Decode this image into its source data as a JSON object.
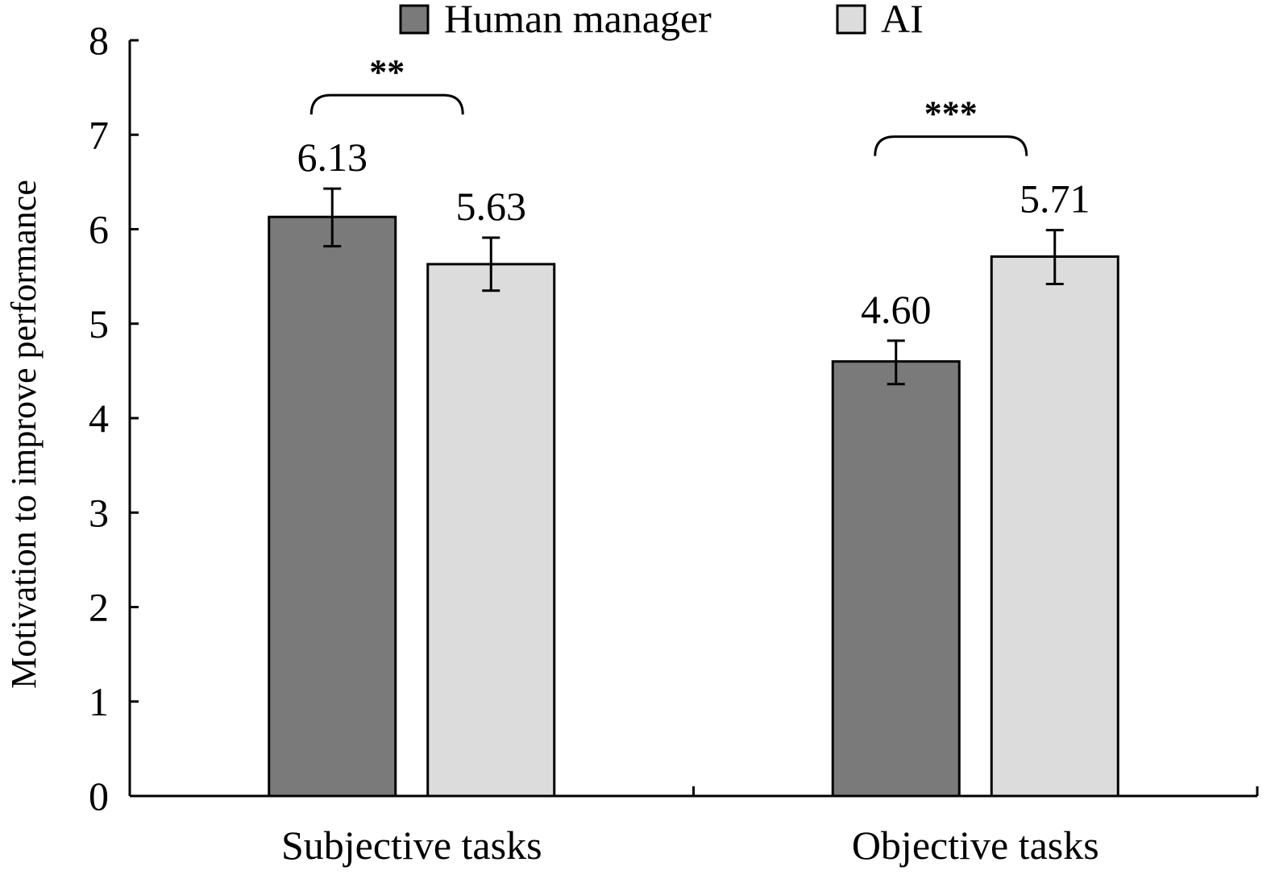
{
  "chart_data": {
    "type": "bar",
    "title": "",
    "xlabel": "",
    "ylabel": "Motivation to improve performance",
    "ylim": [
      0,
      8
    ],
    "yticks": [
      0,
      1,
      2,
      3,
      4,
      5,
      6,
      7,
      8
    ],
    "grid": false,
    "legend_position": "top",
    "categories": [
      "Subjective tasks",
      "Objective tasks"
    ],
    "series": [
      {
        "name": "Human manager",
        "color": "#7a7a7a",
        "values": [
          6.13,
          4.6
        ],
        "value_labels": [
          "6.13",
          "4.60"
        ],
        "error_low": [
          5.82,
          4.36
        ],
        "error_high": [
          6.43,
          4.82
        ]
      },
      {
        "name": "AI",
        "color": "#dcdcdc",
        "values": [
          5.63,
          5.71
        ],
        "value_labels": [
          "5.63",
          "5.71"
        ],
        "error_low": [
          5.35,
          5.42
        ],
        "error_high": [
          5.91,
          5.99
        ]
      }
    ],
    "significance": [
      {
        "category_index": 0,
        "label": "**"
      },
      {
        "category_index": 1,
        "label": "***"
      }
    ]
  }
}
